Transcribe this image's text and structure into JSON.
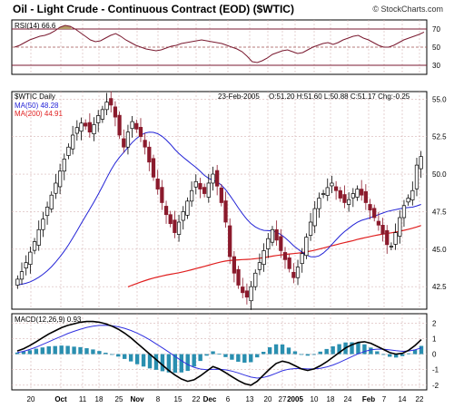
{
  "header": {
    "title": "Oil - Light Crude - Continuous Contract (EOD) ($WTIC)",
    "watermark": "© StockCharts.com"
  },
  "colors": {
    "up": "#000000",
    "down": "#8b1a2c",
    "ma50": "#2323d6",
    "ma200": "#e01f1f",
    "rsi": "#7a1a30",
    "rsi_fill": "#b39b66",
    "macd": "#000000",
    "signal": "#3030e0",
    "hist": "#2a8fb0",
    "grid": "#d6b5b5"
  },
  "chart_data": [
    {
      "type": "line",
      "panel": "rsi",
      "legend": "RSI(14) 66.6",
      "ylim": [
        20,
        80
      ],
      "y_ticks": [
        "70",
        "50",
        "30"
      ],
      "reference_lines": [
        70,
        50,
        30
      ],
      "values": [
        50,
        52,
        55,
        58,
        60,
        62,
        63,
        65,
        68,
        72,
        74,
        73,
        70,
        66,
        62,
        58,
        56,
        57,
        60,
        63,
        65,
        62,
        58,
        55,
        52,
        50,
        48,
        47,
        46,
        47,
        49,
        51,
        52,
        54,
        55,
        56,
        57,
        58,
        57,
        56,
        55,
        54,
        52,
        50,
        48,
        45,
        40,
        34,
        33,
        35,
        38,
        42,
        44,
        46,
        47,
        45,
        43,
        44,
        47,
        50,
        52,
        54,
        55,
        53,
        55,
        58,
        60,
        62,
        63,
        60,
        58,
        55,
        52,
        50,
        50,
        52,
        55,
        58,
        60,
        62,
        64,
        66.6
      ]
    },
    {
      "type": "candlestick",
      "panel": "price",
      "legend": {
        "symbol": "$WTIC Daily",
        "date": "23-Feb-2005",
        "ohlc": "O:51.20 H:51.60 L:50.88 C:51.17 Chg:-0.25",
        "ma50": "MA(50) 48.28",
        "ma200": "MA(200) 44.91"
      },
      "ylim": [
        41,
        55.5
      ],
      "y_ticks": [
        "55.0",
        "52.5",
        "50.0",
        "47.5",
        "45.0",
        "42.5"
      ],
      "close": [
        43.0,
        43.5,
        44.1,
        44.8,
        45.5,
        46.3,
        47.0,
        47.8,
        48.6,
        49.4,
        50.2,
        51.0,
        51.8,
        52.6,
        53.1,
        53.4,
        53.2,
        52.8,
        53.3,
        53.9,
        54.3,
        54.8,
        54.6,
        53.8,
        52.6,
        51.8,
        52.8,
        53.5,
        53.0,
        52.5,
        51.8,
        50.8,
        49.8,
        49.0,
        48.1,
        47.3,
        46.7,
        46.1,
        46.8,
        47.5,
        48.2,
        48.9,
        49.5,
        49.0,
        48.7,
        49.4,
        50.0,
        49.2,
        48.1,
        46.8,
        44.5,
        43.4,
        42.6,
        42.1,
        41.8,
        42.5,
        43.4,
        44.1,
        44.9,
        45.7,
        46.3,
        45.6,
        44.9,
        44.3,
        43.7,
        43.1,
        43.8,
        44.7,
        45.8,
        46.8,
        47.7,
        48.4,
        48.7,
        49.1,
        49.4,
        48.9,
        48.4,
        48.1,
        48.3,
        48.7,
        49.0,
        48.6,
        48.1,
        47.6,
        47.1,
        46.6,
        46.0,
        45.3,
        45.2,
        46.1,
        47.1,
        47.9,
        48.4,
        48.9,
        50.6,
        51.17
      ]
    },
    {
      "type": "line",
      "panel": "macd",
      "legend": "MACD(12,26,9) 0.93",
      "ylim": [
        -2.3,
        2.6
      ],
      "y_ticks": [
        "2",
        "1",
        "0",
        "-1",
        "-2"
      ],
      "series_macd": [
        0.2,
        0.35,
        0.55,
        0.8,
        1.05,
        1.3,
        1.5,
        1.7,
        1.85,
        1.95,
        2.05,
        2.1,
        2.1,
        2.05,
        1.95,
        1.8,
        1.6,
        1.35,
        1.05,
        0.7,
        0.35,
        0.0,
        -0.35,
        -0.7,
        -1.05,
        -1.35,
        -1.6,
        -1.75,
        -1.65,
        -1.4,
        -1.1,
        -0.8,
        -0.95,
        -1.2,
        -1.45,
        -1.7,
        -1.9,
        -2.0,
        -1.75,
        -1.35,
        -0.95,
        -0.6,
        -0.45,
        -0.55,
        -0.75,
        -0.95,
        -1.05,
        -0.95,
        -0.75,
        -0.5,
        -0.2,
        0.1,
        0.4,
        0.6,
        0.75,
        0.8,
        0.7,
        0.5,
        0.3,
        0.1,
        0.0,
        0.05,
        0.25,
        0.55,
        0.93
      ],
      "series_signal": [
        0.1,
        0.18,
        0.3,
        0.45,
        0.62,
        0.8,
        0.98,
        1.15,
        1.32,
        1.47,
        1.6,
        1.72,
        1.8,
        1.85,
        1.86,
        1.83,
        1.76,
        1.66,
        1.52,
        1.35,
        1.15,
        0.92,
        0.66,
        0.4,
        0.13,
        -0.15,
        -0.42,
        -0.67,
        -0.85,
        -0.96,
        -1.0,
        -0.98,
        -0.97,
        -1.01,
        -1.09,
        -1.21,
        -1.35,
        -1.48,
        -1.54,
        -1.5,
        -1.39,
        -1.23,
        -1.07,
        -0.97,
        -0.93,
        -0.93,
        -0.95,
        -0.95,
        -0.91,
        -0.83,
        -0.7,
        -0.54,
        -0.35,
        -0.16,
        0.02,
        0.17,
        0.28,
        0.32,
        0.32,
        0.27,
        0.22,
        0.18,
        0.2,
        0.27,
        0.4
      ]
    }
  ],
  "x_axis": {
    "labels": [
      "20",
      "Oct",
      "11",
      "18",
      "25",
      "Nov",
      "8",
      "15",
      "22",
      "Dec",
      "6",
      "13",
      "20",
      "27",
      "2005",
      "10",
      "18",
      "24",
      "Feb",
      "7",
      "14",
      "22"
    ],
    "bold": [
      "Oct",
      "Nov",
      "Dec",
      "2005",
      "Feb"
    ]
  }
}
